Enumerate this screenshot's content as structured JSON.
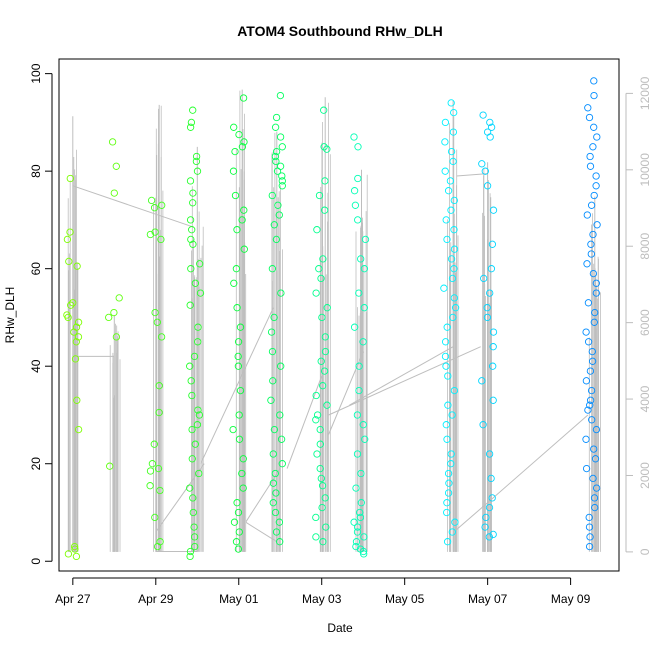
{
  "chart_data": {
    "type": "scatter",
    "title": "ATOM4 Southbound RHw_DLH",
    "xlabel": "Date",
    "ylabel": "RHw_DLH",
    "xlim": [
      "2023-04-26T16:00",
      "2023-05-10T04:00"
    ],
    "ylim": [
      -2,
      103
    ],
    "y2lim": [
      -500,
      12900
    ],
    "grid": false,
    "x_ticks": [
      "Apr 27",
      "Apr 29",
      "May 01",
      "May 03",
      "May 05",
      "May 07",
      "May 09"
    ],
    "y_ticks": [
      0,
      20,
      40,
      60,
      80,
      100
    ],
    "y2_ticks": [
      0,
      2000,
      4000,
      6000,
      8000,
      10000,
      12000
    ],
    "point_colors": [
      "#7FFF00",
      "#00FF40",
      "#00FFFF",
      "#0080FF"
    ],
    "line_color": "#BEBEBE",
    "clusters": [
      {
        "date": "2023-04-27T00:00",
        "values": [
          78.5,
          67.5,
          66,
          61.5,
          60.5,
          53,
          52.5,
          50.5,
          50,
          49,
          48,
          47,
          46,
          45,
          41.5,
          33,
          27,
          3,
          2.5,
          1.5,
          1
        ]
      },
      {
        "date": "2023-04-28T00:00",
        "values": [
          86,
          81,
          75.5,
          54,
          51,
          50,
          46,
          19.5
        ]
      },
      {
        "date": "2023-04-29T00:00",
        "values": [
          74,
          73,
          72.5,
          67.5,
          67,
          66,
          51,
          49,
          46,
          36,
          30.5,
          24,
          20,
          19,
          18.5,
          15.5,
          14.5,
          9,
          4,
          3
        ]
      },
      {
        "date": "2023-04-29T23:00",
        "values": [
          92.5,
          90,
          89,
          83,
          82,
          80,
          78,
          75.5,
          73.5,
          70,
          68,
          66,
          65,
          61,
          60,
          57,
          55,
          52.5,
          48,
          45,
          42,
          40,
          37,
          34,
          31,
          30,
          28,
          27,
          24,
          21,
          18,
          15,
          13,
          10,
          7,
          5,
          3,
          2,
          1
        ]
      },
      {
        "date": "2023-05-01T00:00",
        "values": [
          95,
          89,
          87.5,
          86,
          85,
          84,
          80,
          75,
          72,
          70,
          68,
          64,
          60,
          57,
          52,
          48,
          45,
          42,
          40,
          35,
          30,
          27,
          25,
          21,
          18,
          15,
          12,
          10,
          8,
          6,
          4,
          2.5
        ]
      },
      {
        "date": "2023-05-01T22:00",
        "values": [
          95.5,
          91,
          89,
          87,
          85,
          84,
          83,
          82,
          81,
          80,
          79,
          78,
          77,
          75,
          73,
          71,
          69,
          66,
          60,
          55,
          50,
          47,
          43,
          40,
          37,
          33,
          30,
          27,
          25,
          22,
          20,
          18,
          16,
          14,
          12,
          10,
          8,
          6,
          4
        ]
      },
      {
        "date": "2023-05-03T00:00",
        "values": [
          92.5,
          85,
          84.5,
          78,
          75,
          72,
          68,
          62,
          60,
          58,
          55,
          52,
          50,
          46,
          43,
          41,
          39,
          36,
          34,
          32,
          30,
          29,
          27,
          24,
          22,
          19,
          17,
          15.5,
          13,
          11,
          9,
          7,
          5,
          4
        ]
      },
      {
        "date": "2023-05-03T22:00",
        "values": [
          87,
          85,
          78.5,
          76,
          73,
          70,
          66,
          62,
          60,
          55,
          52,
          48,
          45,
          40,
          35,
          30,
          28,
          25,
          22,
          18,
          15,
          12,
          10,
          9,
          8,
          7,
          6,
          5,
          4,
          3,
          2.5,
          2,
          1.5
        ]
      },
      {
        "date": "2023-05-06T02:00",
        "values": [
          94,
          92,
          90,
          88,
          86,
          84,
          82,
          80,
          78,
          76,
          74,
          72,
          70,
          68,
          66,
          64,
          62,
          60,
          58,
          56,
          54,
          52,
          50,
          48,
          45,
          42,
          40,
          38,
          35,
          32,
          30,
          28,
          25,
          22,
          20,
          18,
          16,
          14,
          12,
          10,
          8,
          6,
          4
        ]
      },
      {
        "date": "2023-05-07T00:00",
        "values": [
          91.5,
          90,
          89,
          88,
          87,
          81.5,
          80,
          77,
          72,
          65,
          60,
          58,
          55,
          52,
          50,
          47,
          44,
          40,
          37,
          33,
          28,
          22,
          17,
          13,
          11,
          9,
          7,
          5.5,
          5
        ]
      },
      {
        "date": "2023-05-09T12:00",
        "values": [
          98.5,
          95.5,
          93,
          91,
          89,
          87,
          85,
          83,
          81,
          79,
          77,
          75,
          73,
          71,
          69,
          67,
          65,
          63,
          61,
          59,
          57,
          55,
          53,
          51,
          49,
          47,
          45,
          43,
          41,
          39,
          37,
          35,
          33,
          32,
          31,
          29,
          27,
          25,
          23,
          21,
          19,
          17,
          15,
          13,
          11,
          9,
          7,
          5,
          3
        ]
      }
    ],
    "vertical_traces": [
      {
        "date": "2023-04-27T00:00",
        "y2_max": 11400
      },
      {
        "date": "2023-04-28T00:00",
        "y2_max": 6200
      },
      {
        "date": "2023-04-29T02:00",
        "y2_max": 11700
      },
      {
        "date": "2023-04-30T00:00",
        "y2_max": 10600
      },
      {
        "date": "2023-05-01T02:00",
        "y2_max": 12100
      },
      {
        "date": "2023-05-01T22:00",
        "y2_max": 11000
      },
      {
        "date": "2023-05-03T02:00",
        "y2_max": 11900
      },
      {
        "date": "2023-05-03T23:00",
        "y2_max": 10000
      },
      {
        "date": "2023-05-06T04:00",
        "y2_max": 11800
      },
      {
        "date": "2023-05-07T00:00",
        "y2_max": 10200
      },
      {
        "date": "2023-05-09T14:00",
        "y2_max": 9300
      }
    ],
    "connecting_lines": [
      [
        [
          "2023-04-27T00:00",
          77
        ],
        [
          "2023-04-29T22:00",
          68.5
        ]
      ],
      [
        [
          "2023-04-27T00:00",
          42
        ],
        [
          "2023-04-28T00:00",
          42
        ]
      ],
      [
        [
          "2023-04-29T00:00",
          6
        ],
        [
          "2023-04-30T04:00",
          20
        ]
      ],
      [
        [
          "2023-04-29T00:00",
          2
        ],
        [
          "2023-04-30T00:00",
          2
        ]
      ],
      [
        [
          "2023-04-30T02:00",
          20
        ],
        [
          "2023-05-01T20:00",
          52
        ]
      ],
      [
        [
          "2023-05-01T04:00",
          8
        ],
        [
          "2023-05-02T00:00",
          19
        ]
      ],
      [
        [
          "2023-05-01T04:00",
          8
        ],
        [
          "2023-05-01T22:00",
          4
        ]
      ],
      [
        [
          "2023-05-02T04:00",
          19
        ],
        [
          "2023-05-03T00:00",
          38
        ]
      ],
      [
        [
          "2023-05-03T04:00",
          26
        ],
        [
          "2023-05-04T00:00",
          43
        ]
      ],
      [
        [
          "2023-05-03T04:00",
          30
        ],
        [
          "2023-05-06T20:00",
          44
        ]
      ],
      [
        [
          "2023-05-03T16:00",
          32
        ],
        [
          "2023-05-06T04:00",
          44
        ]
      ],
      [
        [
          "2023-05-06T06:00",
          79
        ],
        [
          "2023-05-07T00:00",
          79.5
        ]
      ],
      [
        [
          "2023-05-06T06:00",
          6.5
        ],
        [
          "2023-05-07T00:00",
          12
        ]
      ],
      [
        [
          "2023-05-07T00:00",
          12
        ],
        [
          "2023-05-09T10:00",
          30
        ]
      ]
    ]
  }
}
